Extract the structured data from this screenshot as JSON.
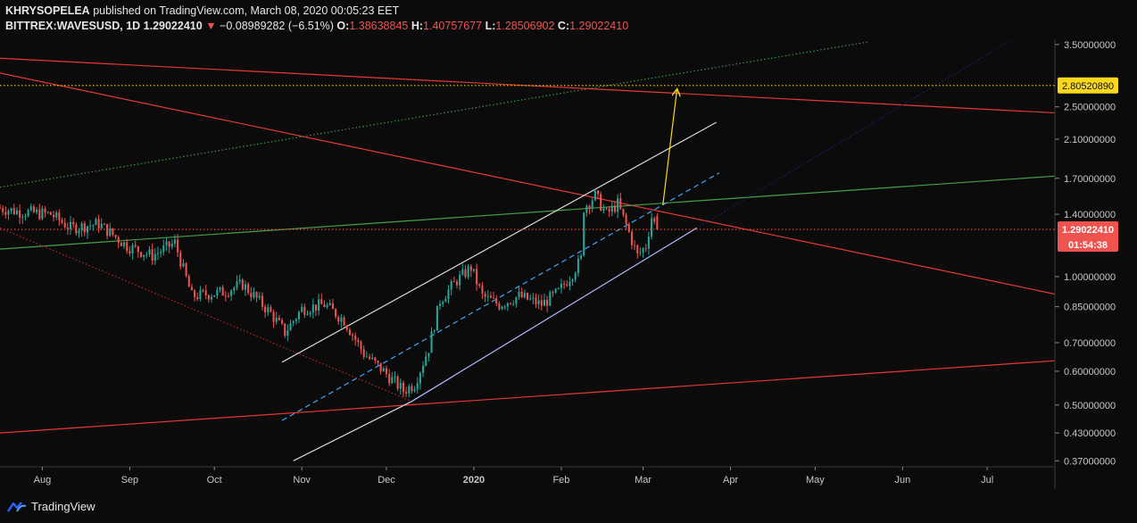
{
  "header": {
    "author": "KHRYSOPELEA",
    "published": "published on TradingView.com, March 08, 2020 00:05:23 EET",
    "symbol": "BITTREX:WAVESUSD, 1D",
    "last": "1.29022410",
    "change_arrow": "▼",
    "change": "−0.08989282 (−6.51%)",
    "o_label": "O:",
    "o": "1.38638845",
    "h_label": "H:",
    "h": "1.40757677",
    "l_label": "L:",
    "l": "1.28506902",
    "c_label": "C:",
    "c": "1.29022410"
  },
  "footer": {
    "brand": "TradingView",
    "icon": "tradingview-logo-icon"
  },
  "colors": {
    "background": "#0b0b0b",
    "up": "#26a69a",
    "down": "#ef5350",
    "axis_text": "#c8c8c8"
  },
  "chart_data": {
    "type": "candlestick",
    "y_scale": "log",
    "ylim": [
      0.36,
      3.6
    ],
    "y_ticks": [
      {
        "value": 3.5,
        "label": "3.50000000"
      },
      {
        "value": 2.5,
        "label": "2.50000000"
      },
      {
        "value": 2.1,
        "label": "2.10000000"
      },
      {
        "value": 1.7,
        "label": "1.70000000"
      },
      {
        "value": 1.4,
        "label": "1.40000000"
      },
      {
        "value": 1.0,
        "label": "1.00000000"
      },
      {
        "value": 0.85,
        "label": "0.85000000"
      },
      {
        "value": 0.7,
        "label": "0.70000000"
      },
      {
        "value": 0.6,
        "label": "0.60000000"
      },
      {
        "value": 0.5,
        "label": "0.50000000"
      },
      {
        "value": 0.43,
        "label": "0.43000000"
      },
      {
        "value": 0.37,
        "label": "0.37000000"
      }
    ],
    "x_range": [
      "2019-07-17",
      "2020-07-25"
    ],
    "x_ticks": [
      {
        "date": "2019-08-01",
        "label": "Aug"
      },
      {
        "date": "2019-09-01",
        "label": "Sep"
      },
      {
        "date": "2019-10-01",
        "label": "Oct"
      },
      {
        "date": "2019-11-01",
        "label": "Nov"
      },
      {
        "date": "2019-12-01",
        "label": "Dec"
      },
      {
        "date": "2020-01-01",
        "label": "2020"
      },
      {
        "date": "2020-02-01",
        "label": "Feb"
      },
      {
        "date": "2020-03-01",
        "label": "Mar"
      },
      {
        "date": "2020-04-01",
        "label": "Apr"
      },
      {
        "date": "2020-05-01",
        "label": "May"
      },
      {
        "date": "2020-06-01",
        "label": "Jun"
      },
      {
        "date": "2020-07-01",
        "label": "Jul"
      }
    ],
    "price_path": [
      [
        "2019-07-17",
        1.45
      ],
      [
        "2019-07-25",
        1.42
      ],
      [
        "2019-08-05",
        1.4
      ],
      [
        "2019-08-12",
        1.3
      ],
      [
        "2019-08-22",
        1.33
      ],
      [
        "2019-09-01",
        1.18
      ],
      [
        "2019-09-10",
        1.12
      ],
      [
        "2019-09-18",
        1.2
      ],
      [
        "2019-09-24",
        0.9
      ],
      [
        "2019-10-05",
        0.92
      ],
      [
        "2019-10-12",
        0.96
      ],
      [
        "2019-10-22",
        0.82
      ],
      [
        "2019-10-27",
        0.74
      ],
      [
        "2019-11-02",
        0.84
      ],
      [
        "2019-11-10",
        0.86
      ],
      [
        "2019-11-17",
        0.79
      ],
      [
        "2019-11-24",
        0.66
      ],
      [
        "2019-12-01",
        0.6
      ],
      [
        "2019-12-08",
        0.54
      ],
      [
        "2019-12-12",
        0.56
      ],
      [
        "2019-12-17",
        0.68
      ],
      [
        "2019-12-21",
        0.88
      ],
      [
        "2019-12-27",
        0.98
      ],
      [
        "2020-01-01",
        1.05
      ],
      [
        "2020-01-05",
        0.9
      ],
      [
        "2020-01-11",
        0.86
      ],
      [
        "2020-01-18",
        0.9
      ],
      [
        "2020-01-26",
        0.86
      ],
      [
        "2020-02-01",
        0.92
      ],
      [
        "2020-02-06",
        1.02
      ],
      [
        "2020-02-09",
        1.1
      ],
      [
        "2020-02-10",
        1.45
      ],
      [
        "2020-02-14",
        1.55
      ],
      [
        "2020-02-18",
        1.4
      ],
      [
        "2020-02-22",
        1.48
      ],
      [
        "2020-02-25",
        1.32
      ],
      [
        "2020-02-29",
        1.12
      ],
      [
        "2020-03-03",
        1.18
      ],
      [
        "2020-03-05",
        1.38
      ],
      [
        "2020-03-07",
        1.29
      ]
    ],
    "last_candle": {
      "date": "2020-03-07",
      "open": 1.38638845,
      "high": 1.40757677,
      "low": 1.28506902,
      "close": 1.2902241
    },
    "price_label": {
      "value": 1.2902241,
      "text": "1.29022410",
      "countdown": "01:54:38"
    },
    "target_label": {
      "value": 2.8052089,
      "text": "2.80520890"
    },
    "drawings": [
      {
        "name": "red-resistance-long",
        "color": "#e53935",
        "style": "solid",
        "p1": [
          "2019-07-17",
          3.25
        ],
        "p2": [
          "2020-07-25",
          2.42
        ]
      },
      {
        "name": "red-resistance-mid",
        "color": "#e53935",
        "style": "solid",
        "p1": [
          "2019-07-17",
          3.0
        ],
        "p2": [
          "2020-07-25",
          0.91
        ]
      },
      {
        "name": "red-support-low",
        "color": "#e53935",
        "style": "solid",
        "p1": [
          "2019-07-17",
          0.43
        ],
        "p2": [
          "2020-07-25",
          0.635
        ]
      },
      {
        "name": "green-trendline",
        "color": "#43a047",
        "style": "solid",
        "p1": [
          "2019-07-17",
          1.16
        ],
        "p2": [
          "2020-07-25",
          1.72
        ]
      },
      {
        "name": "green-dotted-trendline",
        "color": "#43a047",
        "style": "dotted",
        "p1": [
          "2019-07-17",
          1.62
        ],
        "p2": [
          "2020-05-20",
          3.55
        ]
      },
      {
        "name": "red-dotted-decline",
        "color": "#c62828",
        "style": "dotted",
        "p1": [
          "2019-07-17",
          1.3
        ],
        "p2": [
          "2019-12-10",
          0.51
        ]
      },
      {
        "name": "channel-upper",
        "color": "#d8d8d8",
        "style": "solid",
        "p1": [
          "2019-10-25",
          0.63
        ],
        "p2": [
          "2020-03-27",
          2.3
        ]
      },
      {
        "name": "channel-lower",
        "color": "#b0b8ff",
        "style": "solid",
        "p1": [
          "2019-12-10",
          0.51
        ],
        "p2": [
          "2020-03-20",
          1.3
        ]
      },
      {
        "name": "channel-lower-extension",
        "color": "#d8d8d8",
        "style": "solid",
        "p1": [
          "2019-10-29",
          0.37
        ],
        "p2": [
          "2019-12-10",
          0.51
        ]
      },
      {
        "name": "channel-middle",
        "color": "#42a5f5",
        "style": "dashed",
        "p1": [
          "2019-10-25",
          0.46
        ],
        "p2": [
          "2020-03-28",
          1.75
        ]
      },
      {
        "name": "blue-dotted-trendline",
        "color": "#1a237e",
        "style": "dotted",
        "p1": [
          "2020-03-20",
          1.3
        ],
        "p2": [
          "2020-07-10",
          3.6
        ]
      },
      {
        "name": "yellow-projection-arrow",
        "color": "#f9d71c",
        "style": "solid",
        "p1": [
          "2020-03-08",
          1.47
        ],
        "p2": [
          "2020-03-13",
          2.74
        ],
        "arrow": true
      },
      {
        "name": "target-horizontal",
        "color": "#f9d71c",
        "style": "dotted",
        "horizontal": 2.8052089
      },
      {
        "name": "last-price-horizontal",
        "color": "#ef5350",
        "style": "dotted",
        "horizontal": 1.2902241
      }
    ]
  }
}
